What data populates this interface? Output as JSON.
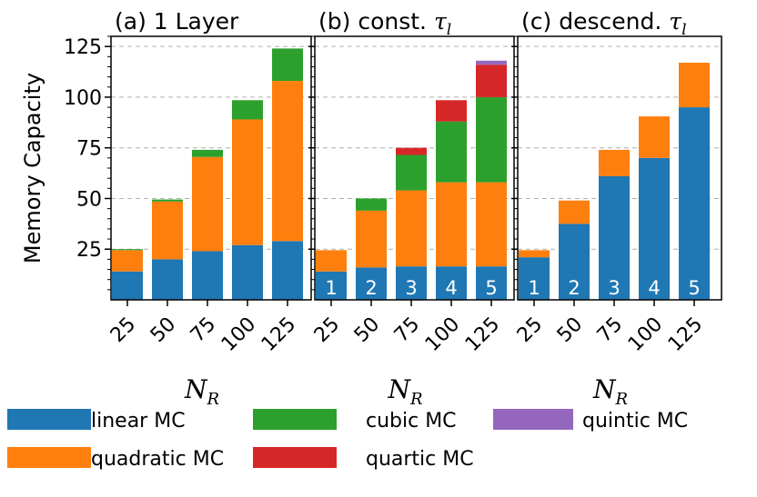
{
  "chart_data": [
    {
      "type": "bar",
      "stacked": true,
      "title_prefix": "(a) 1 Layer",
      "title_math": "",
      "title_math_sub": "",
      "xlabel": "N",
      "xlabel_sub": "R",
      "ylabel": "Memory Capacity",
      "ylim": [
        0,
        130
      ],
      "yticks": [
        "25",
        "50",
        "75",
        "100",
        "125"
      ],
      "categories": [
        "25",
        "50",
        "75",
        "100",
        "125"
      ],
      "bar_labels": [],
      "series": [
        {
          "name": "linear MC",
          "values": [
            14,
            20,
            24,
            27,
            29
          ]
        },
        {
          "name": "quadratic MC",
          "values": [
            10.5,
            28.5,
            46.5,
            62,
            79
          ]
        },
        {
          "name": "cubic MC",
          "values": [
            0.5,
            1,
            3.5,
            9.5,
            16
          ]
        },
        {
          "name": "quartic MC",
          "values": [
            0,
            0,
            0,
            0,
            0
          ]
        },
        {
          "name": "quintic MC",
          "values": [
            0,
            0,
            0,
            0,
            0
          ]
        }
      ]
    },
    {
      "type": "bar",
      "stacked": true,
      "title_prefix": "(b) const. ",
      "title_math": "τ",
      "title_math_sub": "l",
      "xlabel": "N",
      "xlabel_sub": "R",
      "ylabel": "",
      "ylim": [
        0,
        130
      ],
      "yticks": [],
      "categories": [
        "25",
        "50",
        "75",
        "100",
        "125"
      ],
      "bar_labels": [
        "1",
        "2",
        "3",
        "4",
        "5"
      ],
      "series": [
        {
          "name": "linear MC",
          "values": [
            14,
            16,
            16.5,
            16.5,
            16.5
          ]
        },
        {
          "name": "quadratic MC",
          "values": [
            10.5,
            28,
            37.5,
            41.5,
            41.5
          ]
        },
        {
          "name": "cubic MC",
          "values": [
            0,
            6,
            17.5,
            30,
            42
          ]
        },
        {
          "name": "quartic MC",
          "values": [
            0,
            0,
            3.5,
            10.5,
            16
          ]
        },
        {
          "name": "quintic MC",
          "values": [
            0,
            0,
            0,
            0,
            2
          ]
        }
      ]
    },
    {
      "type": "bar",
      "stacked": true,
      "title_prefix": "(c) descend. ",
      "title_math": "τ",
      "title_math_sub": "l",
      "xlabel": "N",
      "xlabel_sub": "R",
      "ylabel": "",
      "ylim": [
        0,
        130
      ],
      "yticks": [],
      "categories": [
        "25",
        "50",
        "75",
        "100",
        "125"
      ],
      "bar_labels": [
        "1",
        "2",
        "3",
        "4",
        "5"
      ],
      "series": [
        {
          "name": "linear MC",
          "values": [
            21,
            37.5,
            61,
            70,
            95
          ]
        },
        {
          "name": "quadratic MC",
          "values": [
            3.5,
            11.5,
            13,
            20.5,
            22
          ]
        },
        {
          "name": "cubic MC",
          "values": [
            0,
            0,
            0,
            0,
            0
          ]
        },
        {
          "name": "quartic MC",
          "values": [
            0,
            0,
            0,
            0,
            0
          ]
        },
        {
          "name": "quintic MC",
          "values": [
            0,
            0,
            0,
            0,
            0
          ]
        }
      ]
    }
  ],
  "legend": {
    "items": [
      {
        "label": "linear MC",
        "color": "#1f77b4"
      },
      {
        "label": "cubic MC",
        "color": "#2ca02c"
      },
      {
        "label": "quintic MC",
        "color": "#9467bd"
      },
      {
        "label": "quadratic MC",
        "color": "#ff7f0e"
      },
      {
        "label": "quartic MC",
        "color": "#d62728"
      }
    ]
  },
  "colors": {
    "linear MC": "#1f77b4",
    "quadratic MC": "#ff7f0e",
    "cubic MC": "#2ca02c",
    "quartic MC": "#d62728",
    "quintic MC": "#9467bd",
    "grid": "#b0b0b0"
  }
}
